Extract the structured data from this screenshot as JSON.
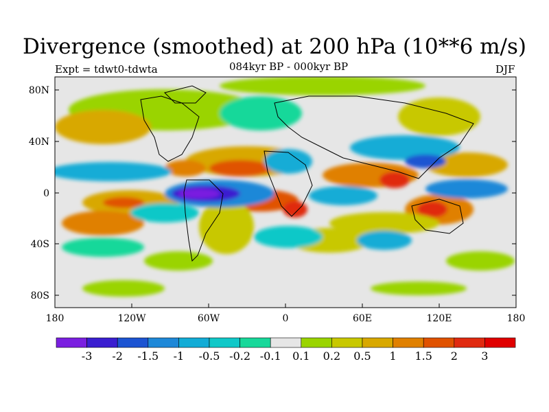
{
  "title": "Divergence (smoothed) at 200 hPa (10**6 m/s)",
  "experiment": "Expt = tdwt0-tdwta",
  "period": "084kyr BP - 000kyr BP",
  "season": "DJF",
  "map": {
    "lat_labels": [
      "80N",
      "40N",
      "0",
      "40S",
      "80S"
    ],
    "lon_labels": [
      "180",
      "120W",
      "60W",
      "0",
      "60E",
      "120E",
      "180"
    ],
    "lat_range": [
      -90,
      90
    ],
    "lon_range": [
      -180,
      180
    ]
  },
  "colorbar": {
    "labels": [
      "-3",
      "-2",
      "-1.5",
      "-1",
      "-0.5",
      "-0.2",
      "-0.1",
      "0.1",
      "0.2",
      "0.5",
      "1",
      "1.5",
      "2",
      "3"
    ],
    "colors": [
      "#7a1fe0",
      "#3a1ed0",
      "#1c54d2",
      "#1e88d8",
      "#12acd6",
      "#10c8c8",
      "#18d89a",
      "#e6e6e6",
      "#9ad400",
      "#c8c800",
      "#d8a800",
      "#e08000",
      "#e05200",
      "#e02a10",
      "#e00000"
    ]
  }
}
